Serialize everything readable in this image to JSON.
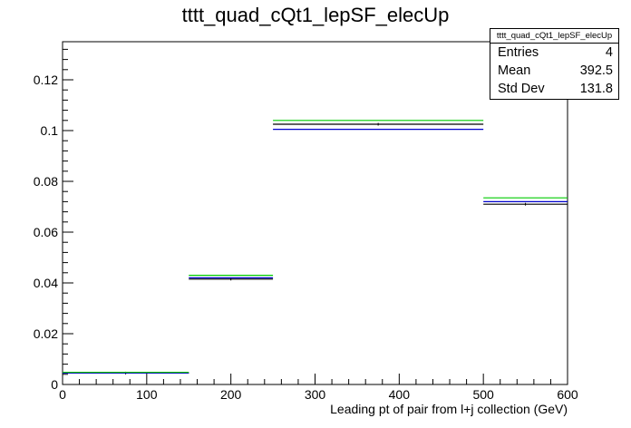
{
  "title": "tttt_quad_cQt1_lepSF_elecUp",
  "stats": {
    "name": "tttt_quad_cQt1_lepSF_elecUp",
    "entries_label": "Entries",
    "entries_value": "4",
    "mean_label": "Mean",
    "mean_value": "392.5",
    "std_label": "Std Dev",
    "std_value": "131.8"
  },
  "chart_data": {
    "type": "bar",
    "title": "tttt_quad_cQt1_lepSF_elecUp",
    "xlabel": "Leading pt of pair from l+j collection (GeV)",
    "ylabel": "",
    "xlim": [
      0,
      600
    ],
    "ylim": [
      0,
      0.135
    ],
    "xticks": [
      "0",
      "100",
      "200",
      "300",
      "400",
      "500",
      "600"
    ],
    "yticks": [
      "0",
      "0.02",
      "0.04",
      "0.06",
      "0.08",
      "0.1",
      "0.12"
    ],
    "bin_edges": [
      0,
      150,
      250,
      500,
      600
    ],
    "series": [
      {
        "color": "#000000",
        "values": [
          0.0045,
          0.0415,
          0.1025,
          0.071
        ]
      },
      {
        "color": "#0000cc",
        "values": [
          0.0045,
          0.042,
          0.1005,
          0.072
        ]
      },
      {
        "color": "#00cc00",
        "values": [
          0.0048,
          0.043,
          0.104,
          0.0735
        ]
      }
    ]
  }
}
